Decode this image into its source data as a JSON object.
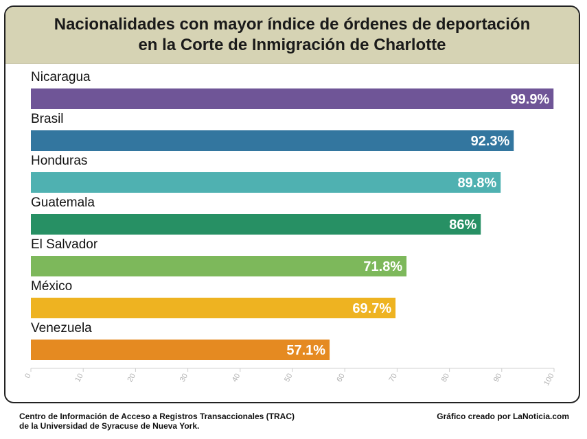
{
  "header": {
    "title_line1": "Nacionalidades con mayor índice de órdenes de deportación",
    "title_line2": "en la Corte de Inmigración de Charlotte"
  },
  "footer": {
    "source_line1": "Centro de Información de Acceso a Registros Transaccionales (TRAC)",
    "source_line2": "de la Universidad de Syracuse de Nueva York.",
    "credit": "Gráfico creado por LaNoticia.com"
  },
  "chart_data": {
    "type": "bar",
    "orientation": "horizontal",
    "title": "Nacionalidades con mayor índice de órdenes de deportación en la Corte de Inmigración de Charlotte",
    "categories": [
      "Nicaragua",
      "Brasil",
      "Honduras",
      "Guatemala",
      "El Salvador",
      "México",
      "Venezuela"
    ],
    "values": [
      99.9,
      92.3,
      89.8,
      86,
      71.8,
      69.7,
      57.1
    ],
    "value_labels": [
      "99.9%",
      "92.3%",
      "89.8%",
      "86%",
      "71.8%",
      "69.7%",
      "57.1%"
    ],
    "colors": [
      "#6f5597",
      "#33769f",
      "#4fb1b1",
      "#279064",
      "#7db85b",
      "#eeb321",
      "#e58a21"
    ],
    "xlim": [
      0,
      100
    ],
    "xticks": [
      0,
      10,
      20,
      30,
      40,
      50,
      60,
      70,
      80,
      90,
      100
    ],
    "grid": false,
    "legend": "none"
  }
}
